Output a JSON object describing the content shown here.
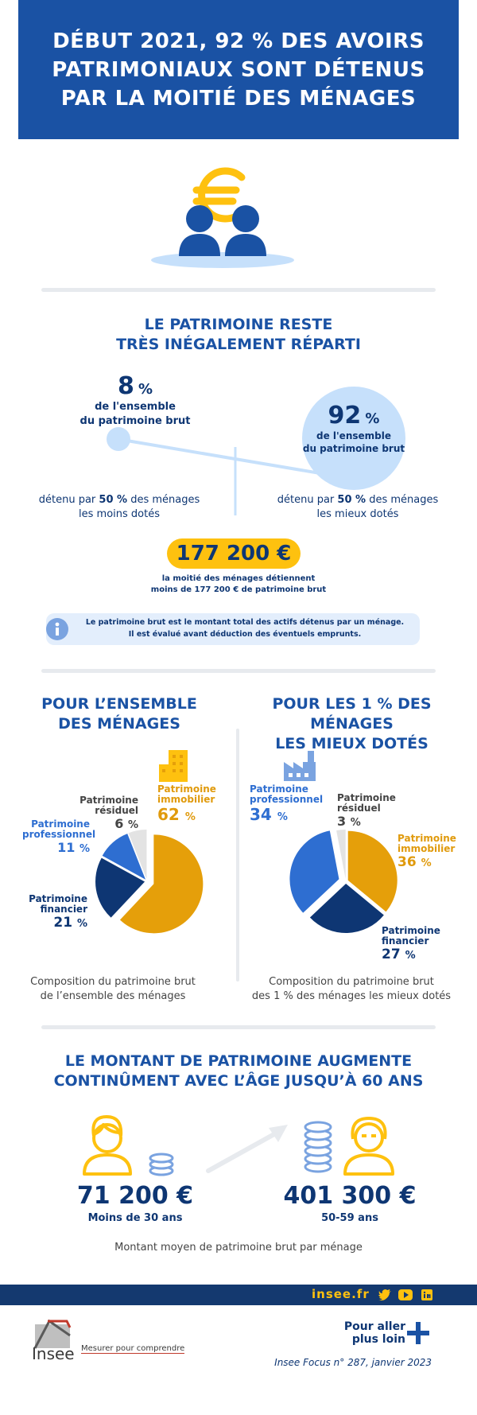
{
  "header": {
    "title_lines": [
      "Début 2021, 92 % des avoirs",
      "patrimoniaux sont détenus",
      "par la moitié des ménages"
    ]
  },
  "icons": {
    "hero": "people-euro-icon",
    "info": "info-icon",
    "building": "building-icon",
    "factory": "factory-icon",
    "person_young": "young-person-icon",
    "person_old": "older-person-icon",
    "coins": "coin-stack-icon",
    "twitter": "twitter-icon",
    "youtube": "youtube-icon",
    "linkedin": "linkedin-icon",
    "plus": "plus-icon"
  },
  "colors": {
    "brand_blue": "#1a52a4",
    "dark_blue": "#0e3673",
    "mid_blue": "#2e6ed1",
    "orange": "#e59f0a",
    "yellow": "#fec10f",
    "light_blue": "#c6e0fb",
    "gray_slice": "#e3e3e3"
  },
  "inequality": {
    "title_lines": [
      "Le patrimoine reste",
      "très inégalement réparti"
    ],
    "left": {
      "value": "8",
      "unit": "%",
      "desc_lines": [
        "de l'ensemble",
        "du patrimoine brut"
      ],
      "held_by_pre": "détenu par ",
      "held_by_bold": "50 %",
      "held_by_post": " des ménages",
      "held_by_line2": "les moins dotés"
    },
    "right": {
      "value": "92",
      "unit": "%",
      "desc_lines": [
        "de l'ensemble",
        "du patrimoine brut"
      ],
      "held_by_pre": "détenu par ",
      "held_by_bold": "50 %",
      "held_by_post": " des ménages",
      "held_by_line2": "les mieux dotés"
    },
    "median": {
      "value": "177 200 €",
      "desc_lines": [
        "la moitié des ménages détiennent",
        "moins de 177 200 € de patrimoine brut"
      ]
    },
    "info_lines": [
      "Le patrimoine brut est le montant total des actifs détenus par un ménage.",
      "Il est évalué avant déduction des éventuels emprunts."
    ]
  },
  "composition": {
    "all": {
      "title_lines": [
        "Pour l’ensemble",
        "des ménages"
      ],
      "caption_lines": [
        "Composition du patrimoine brut",
        "de l’ensemble des ménages"
      ],
      "slices": [
        {
          "label_lines": [
            "Patrimoine",
            "immobilier"
          ],
          "pct": "62",
          "value": 62
        },
        {
          "label_lines": [
            "Patrimoine",
            "financier"
          ],
          "pct": "21",
          "value": 21
        },
        {
          "label_lines": [
            "Patrimoine",
            "professionnel"
          ],
          "pct": "11",
          "value": 11
        },
        {
          "label_lines": [
            "Patrimoine",
            "résiduel"
          ],
          "pct": "6",
          "value": 6
        }
      ]
    },
    "top1": {
      "title_lines": [
        "Pour les 1 % des ménages",
        "les mieux dotés"
      ],
      "caption_lines": [
        "Composition du patrimoine brut",
        "des 1 % des ménages les mieux dotés"
      ],
      "slices": [
        {
          "label_lines": [
            "Patrimoine",
            "immobilier"
          ],
          "pct": "36",
          "value": 36
        },
        {
          "label_lines": [
            "Patrimoine",
            "financier"
          ],
          "pct": "27",
          "value": 27
        },
        {
          "label_lines": [
            "Patrimoine",
            "professionnel"
          ],
          "pct": "34",
          "value": 34
        },
        {
          "label_lines": [
            "Patrimoine",
            "résiduel"
          ],
          "pct": "3",
          "value": 3
        }
      ]
    },
    "pct_unit": "%"
  },
  "age": {
    "title_lines": [
      "Le montant de patrimoine augmente",
      "continûment avec l’âge jusqu’à 60 ans"
    ],
    "young": {
      "amount": "71 200 €",
      "label": "Moins de 30 ans"
    },
    "old": {
      "amount": "401 300 €",
      "label": "50-59 ans"
    },
    "caption": "Montant moyen de patrimoine brut par ménage"
  },
  "footer": {
    "site": "insee.fr",
    "more_lines": [
      "Pour aller",
      "plus loin"
    ],
    "reference": "Insee Focus n° 287, janvier 2023",
    "logo_text": "Insee",
    "tagline": "Mesurer pour comprendre"
  }
}
